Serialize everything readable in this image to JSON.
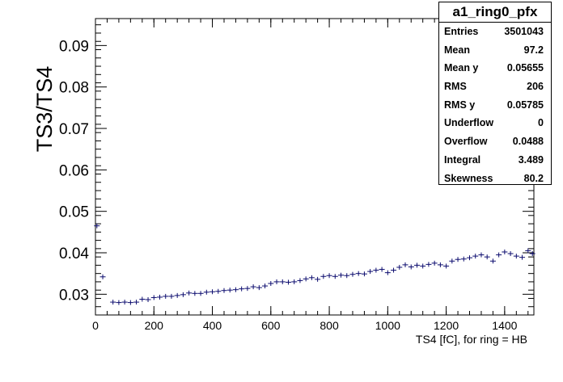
{
  "chart_data": {
    "type": "scatter",
    "xlabel": "TS4 [fC], for ring = HB",
    "ylabel": "TS3/TS4",
    "xlim": [
      0,
      1500
    ],
    "ylim": [
      0.025,
      0.0965
    ],
    "x_ticks": [
      "0",
      "200",
      "400",
      "600",
      "800",
      "1000",
      "1200",
      "1400"
    ],
    "y_ticks": [
      "0.03",
      "0.04",
      "0.05",
      "0.06",
      "0.07",
      "0.08",
      "0.09"
    ],
    "grid": false,
    "marker_color": "#0b0b6e",
    "series": [
      {
        "points": [
          [
            5,
            0.0465
          ],
          [
            25,
            0.0342
          ],
          [
            60,
            0.0281
          ],
          [
            80,
            0.028
          ],
          [
            100,
            0.0281
          ],
          [
            120,
            0.028
          ],
          [
            140,
            0.0281
          ],
          [
            160,
            0.0288
          ],
          [
            180,
            0.0287
          ],
          [
            200,
            0.0292
          ],
          [
            220,
            0.0293
          ],
          [
            240,
            0.0295
          ],
          [
            260,
            0.0295
          ],
          [
            280,
            0.0297
          ],
          [
            300,
            0.0299
          ],
          [
            320,
            0.0303
          ],
          [
            340,
            0.0302
          ],
          [
            360,
            0.0302
          ],
          [
            380,
            0.0305
          ],
          [
            400,
            0.0306
          ],
          [
            420,
            0.0307
          ],
          [
            440,
            0.0309
          ],
          [
            460,
            0.031
          ],
          [
            480,
            0.0311
          ],
          [
            500,
            0.0313
          ],
          [
            520,
            0.0314
          ],
          [
            540,
            0.0318
          ],
          [
            560,
            0.0316
          ],
          [
            580,
            0.032
          ],
          [
            600,
            0.0326
          ],
          [
            620,
            0.033
          ],
          [
            640,
            0.033
          ],
          [
            660,
            0.0329
          ],
          [
            680,
            0.033
          ],
          [
            700,
            0.0333
          ],
          [
            720,
            0.0337
          ],
          [
            740,
            0.034
          ],
          [
            760,
            0.0336
          ],
          [
            780,
            0.0343
          ],
          [
            800,
            0.0345
          ],
          [
            820,
            0.0343
          ],
          [
            840,
            0.0346
          ],
          [
            860,
            0.0345
          ],
          [
            880,
            0.0348
          ],
          [
            900,
            0.035
          ],
          [
            920,
            0.0349
          ],
          [
            940,
            0.0355
          ],
          [
            960,
            0.0358
          ],
          [
            980,
            0.036
          ],
          [
            1000,
            0.0352
          ],
          [
            1020,
            0.0358
          ],
          [
            1040,
            0.0365
          ],
          [
            1060,
            0.0371
          ],
          [
            1080,
            0.0366
          ],
          [
            1100,
            0.037
          ],
          [
            1120,
            0.0368
          ],
          [
            1140,
            0.0372
          ],
          [
            1160,
            0.0375
          ],
          [
            1180,
            0.0371
          ],
          [
            1200,
            0.0368
          ],
          [
            1220,
            0.038
          ],
          [
            1240,
            0.0384
          ],
          [
            1260,
            0.0385
          ],
          [
            1280,
            0.0388
          ],
          [
            1300,
            0.0392
          ],
          [
            1320,
            0.0395
          ],
          [
            1340,
            0.039
          ],
          [
            1360,
            0.038
          ],
          [
            1380,
            0.0395
          ],
          [
            1400,
            0.0402
          ],
          [
            1420,
            0.0398
          ],
          [
            1440,
            0.0392
          ],
          [
            1460,
            0.0389
          ],
          [
            1480,
            0.0405
          ],
          [
            1495,
            0.0398
          ]
        ]
      }
    ]
  },
  "stats": {
    "title": "a1_ring0_pfx",
    "rows": [
      {
        "label": "Entries",
        "value": "3501043"
      },
      {
        "label": "Mean",
        "value": "97.2"
      },
      {
        "label": "Mean y",
        "value": "0.05655"
      },
      {
        "label": "RMS",
        "value": "206"
      },
      {
        "label": "RMS y",
        "value": "0.05785"
      },
      {
        "label": "Underflow",
        "value": "0"
      },
      {
        "label": "Overflow",
        "value": "0.0488"
      },
      {
        "label": "Integral",
        "value": "3.489"
      },
      {
        "label": "Skewness",
        "value": "80.2"
      }
    ]
  }
}
